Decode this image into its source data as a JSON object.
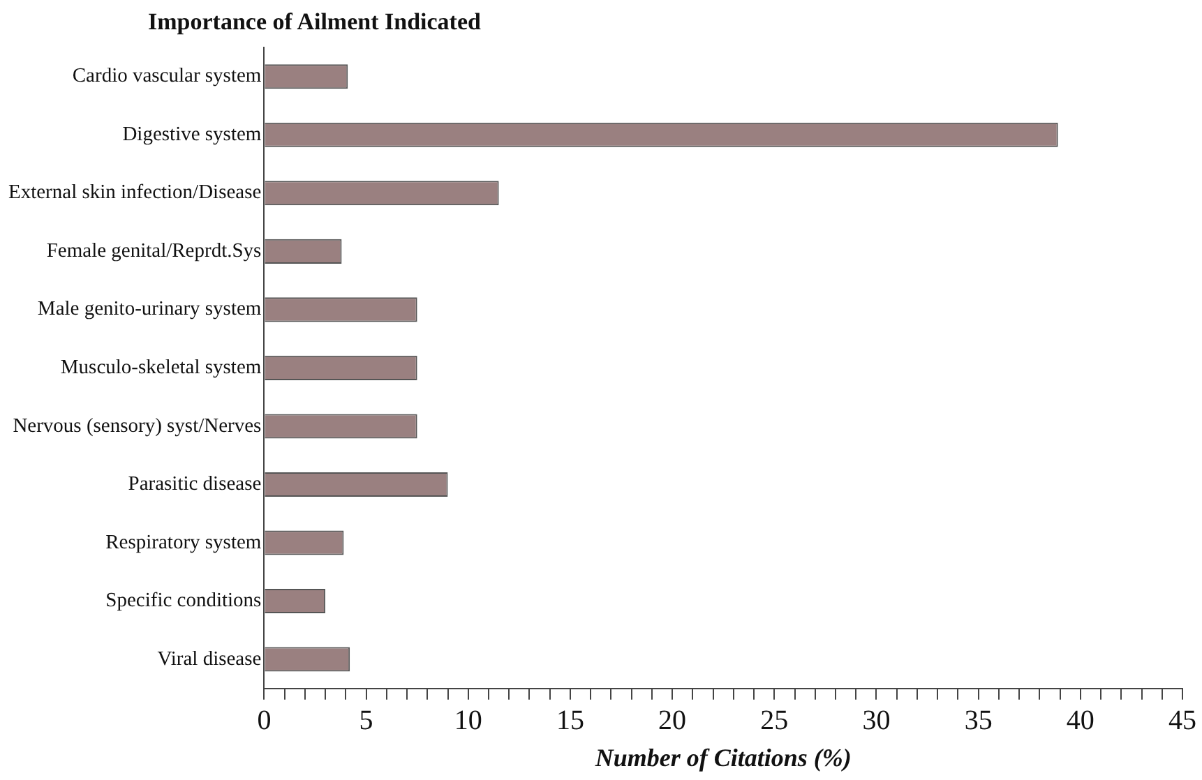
{
  "chart_data": {
    "type": "bar",
    "orientation": "horizontal",
    "title": "Importance of Ailment Indicated",
    "xlabel": "Number of Citations (%)",
    "categories": [
      "Cardio vascular system",
      "Digestive system",
      "External skin infection/Disease",
      "Female genital/Reprdt.Sys",
      "Male genito-urinary system",
      "Musculo-skeletal system",
      "Nervous (sensory) syst/Nerves",
      "Parasitic disease",
      "Respiratory system",
      "Specific conditions",
      "Viral disease"
    ],
    "values": [
      4.1,
      38.9,
      11.5,
      3.8,
      7.5,
      7.5,
      7.5,
      9.0,
      3.9,
      3.0,
      4.2
    ],
    "color": "#9a8080",
    "xlim": [
      0,
      45
    ],
    "xticks": [
      0,
      {
        "value": 1,
        "label": null
      },
      {
        "value": 2,
        "label": null
      },
      {
        "value": 3,
        "label": null
      },
      {
        "value": 4,
        "label": null
      },
      5,
      {
        "value": 6,
        "label": null
      },
      {
        "value": 7,
        "label": null
      },
      {
        "value": 8,
        "label": null
      },
      {
        "value": 9,
        "label": null
      },
      10,
      {
        "value": 11,
        "label": null
      },
      {
        "value": 12,
        "label": null
      },
      {
        "value": 13,
        "label": null
      },
      {
        "value": 14,
        "label": null
      },
      15,
      {
        "value": 16,
        "label": null
      },
      {
        "value": 17,
        "label": null
      },
      {
        "value": 18,
        "label": null
      },
      {
        "value": 19,
        "label": null
      },
      20,
      {
        "value": 21,
        "label": null
      },
      {
        "value": 22,
        "label": null
      },
      {
        "value": 23,
        "label": null
      },
      {
        "value": 24,
        "label": null
      },
      25,
      {
        "value": 26,
        "label": null
      },
      {
        "value": 27,
        "label": null
      },
      {
        "value": 28,
        "label": null
      },
      {
        "value": 29,
        "label": null
      },
      30,
      {
        "value": 31,
        "label": null
      },
      {
        "value": 32,
        "label": null
      },
      {
        "value": 33,
        "label": null
      },
      {
        "value": 34,
        "label": null
      },
      35,
      {
        "value": 36,
        "label": null
      },
      {
        "value": 37,
        "label": null
      },
      {
        "value": 38,
        "label": null
      },
      {
        "value": 39,
        "label": null
      },
      40,
      {
        "value": 41,
        "label": null
      },
      {
        "value": 42,
        "label": null
      },
      {
        "value": 43,
        "label": null
      },
      {
        "value": 44,
        "label": null
      },
      45
    ],
    "grid": false,
    "legend": false
  }
}
